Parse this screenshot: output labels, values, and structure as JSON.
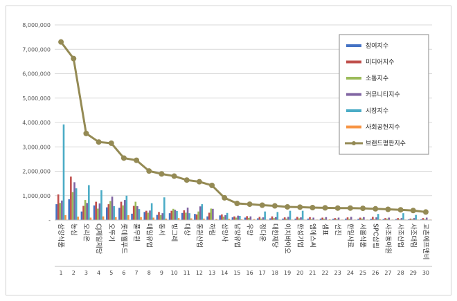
{
  "chart_data": {
    "type": "bar+line",
    "title": "",
    "xlabel": "",
    "ylabel": "",
    "ylim": [
      0,
      8000000
    ],
    "yticks": [
      0,
      1000000,
      2000000,
      3000000,
      4000000,
      5000000,
      6000000,
      7000000,
      8000000
    ],
    "ytick_labels": [
      "-",
      "1,000,000",
      "2,000,000",
      "3,000,000",
      "4,000,000",
      "5,000,000",
      "6,000,000",
      "7,000,000",
      "8,000,000"
    ],
    "grid": true,
    "legend_position": "top-right",
    "ranks": [
      "1",
      "2",
      "3",
      "4",
      "5",
      "6",
      "7",
      "8",
      "9",
      "10",
      "11",
      "12",
      "13",
      "14",
      "15",
      "16",
      "17",
      "18",
      "19",
      "20",
      "21",
      "22",
      "23",
      "24",
      "25",
      "26",
      "27",
      "28",
      "29",
      "30"
    ],
    "categories": [
      "삼양식품",
      "농심",
      "오리온",
      "CJ제일제당",
      "오뚜기",
      "롯데웰푸드",
      "풀무원",
      "매일유업",
      "동서",
      "빙그레",
      "대상",
      "동원산업",
      "하림",
      "삼양사",
      "남양유업",
      "우양",
      "정다운",
      "대한제당",
      "이지바이오",
      "한성기업",
      "엠에스씨",
      "샘표",
      "선진",
      "한일사료",
      "서울식품",
      "SPC삼립",
      "사조동아원",
      "사조산업",
      "사조대림",
      "교촌에프앤비"
    ],
    "series": [
      {
        "name": "참여지수",
        "color": "#4472c4",
        "kind": "bar",
        "values": [
          650000,
          850000,
          350000,
          600000,
          520000,
          500000,
          260000,
          330000,
          210000,
          280000,
          290000,
          250000,
          150000,
          190000,
          110000,
          100000,
          70000,
          70000,
          60000,
          60000,
          60000,
          60000,
          50000,
          60000,
          50000,
          50000,
          40000,
          40000,
          30000,
          30000
        ]
      },
      {
        "name": "미디어지수",
        "color": "#c0504d",
        "kind": "bar",
        "values": [
          1050000,
          1780000,
          580000,
          750000,
          650000,
          750000,
          580000,
          380000,
          330000,
          380000,
          400000,
          230000,
          300000,
          230000,
          150000,
          160000,
          130000,
          150000,
          110000,
          130000,
          120000,
          100000,
          80000,
          110000,
          100000,
          130000,
          80000,
          80000,
          60000,
          80000
        ]
      },
      {
        "name": "소통지수",
        "color": "#9bbb59",
        "kind": "bar",
        "values": [
          700000,
          1150000,
          820000,
          470000,
          780000,
          600000,
          750000,
          300000,
          200000,
          460000,
          300000,
          350000,
          470000,
          140000,
          100000,
          90000,
          60000,
          80000,
          60000,
          70000,
          40000,
          50000,
          40000,
          50000,
          60000,
          40000,
          50000,
          30000,
          40000,
          30000
        ]
      },
      {
        "name": "커뮤니티지수",
        "color": "#8064a2",
        "kind": "bar",
        "values": [
          800000,
          1550000,
          700000,
          680000,
          960000,
          820000,
          570000,
          390000,
          280000,
          420000,
          510000,
          560000,
          460000,
          200000,
          180000,
          150000,
          110000,
          120000,
          130000,
          110000,
          100000,
          120000,
          100000,
          130000,
          120000,
          110000,
          100000,
          80000,
          80000,
          100000
        ]
      },
      {
        "name": "시장지수",
        "color": "#4bacc6",
        "kind": "bar",
        "values": [
          3920000,
          1300000,
          1430000,
          1220000,
          570000,
          1000000,
          450000,
          690000,
          930000,
          370000,
          280000,
          650000,
          0,
          290000,
          170000,
          0,
          350000,
          330000,
          380000,
          380000,
          0,
          0,
          0,
          0,
          0,
          250000,
          0,
          280000,
          210000,
          0
        ]
      },
      {
        "name": "사회공헌지수",
        "color": "#f79646",
        "kind": "bar",
        "values": [
          200000,
          140000,
          100000,
          150000,
          120000,
          200000,
          120000,
          100000,
          60000,
          80000,
          70000,
          60000,
          40000,
          50000,
          30000,
          40000,
          20000,
          20000,
          20000,
          20000,
          20000,
          30000,
          20000,
          20000,
          20000,
          30000,
          20000,
          20000,
          20000,
          20000
        ]
      },
      {
        "name": "브랜드평판지수",
        "color": "#948a54",
        "kind": "line",
        "values": [
          7300000,
          6620000,
          3550000,
          3200000,
          3150000,
          2540000,
          2450000,
          2010000,
          1890000,
          1800000,
          1640000,
          1570000,
          1420000,
          910000,
          680000,
          650000,
          610000,
          580000,
          540000,
          530000,
          510000,
          500000,
          490000,
          490000,
          480000,
          460000,
          440000,
          420000,
          390000,
          330000
        ]
      }
    ]
  }
}
